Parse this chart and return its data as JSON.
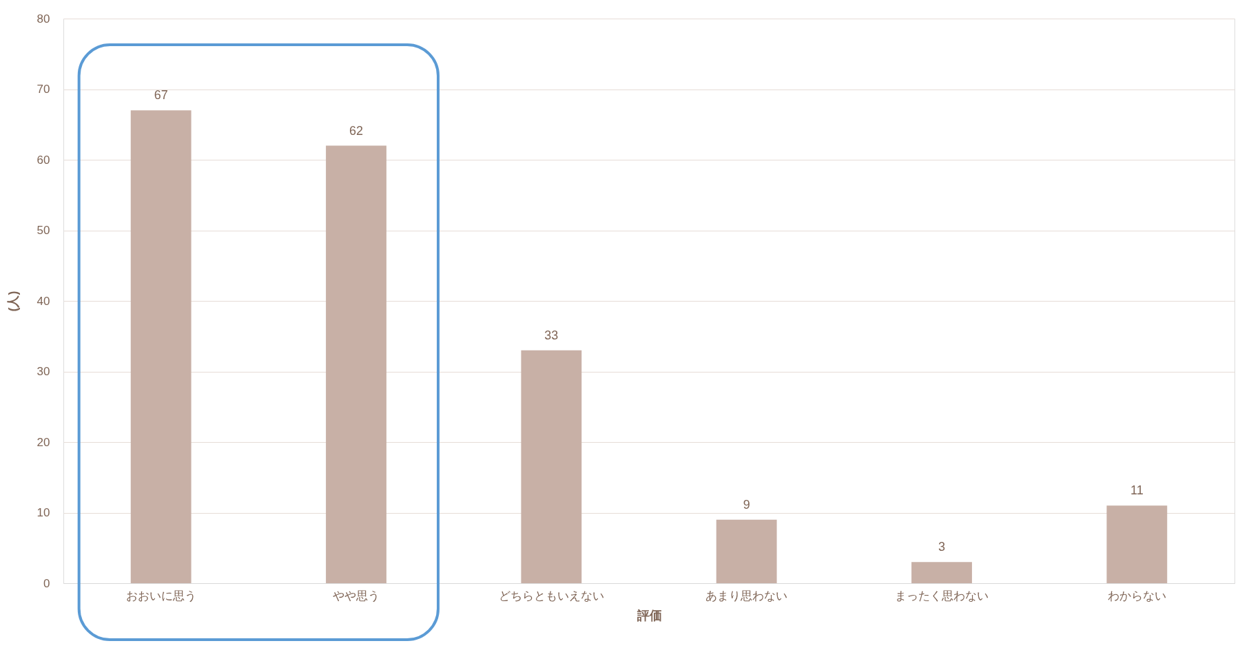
{
  "chart_data": {
    "type": "bar",
    "xlabel": "評価",
    "ylabel": "(人)",
    "categories": [
      "おおいに思う",
      "やや思う",
      "どちらともいえない",
      "あまり思わない",
      "まったく思わない",
      "わからない"
    ],
    "values": [
      67,
      62,
      33,
      9,
      3,
      11
    ],
    "color": "#c8b0a6",
    "ylim": [
      0,
      80
    ],
    "yticks": [
      0,
      10,
      20,
      30,
      40,
      50,
      60,
      70,
      80
    ],
    "grid": "y",
    "data_labels": true
  }
}
